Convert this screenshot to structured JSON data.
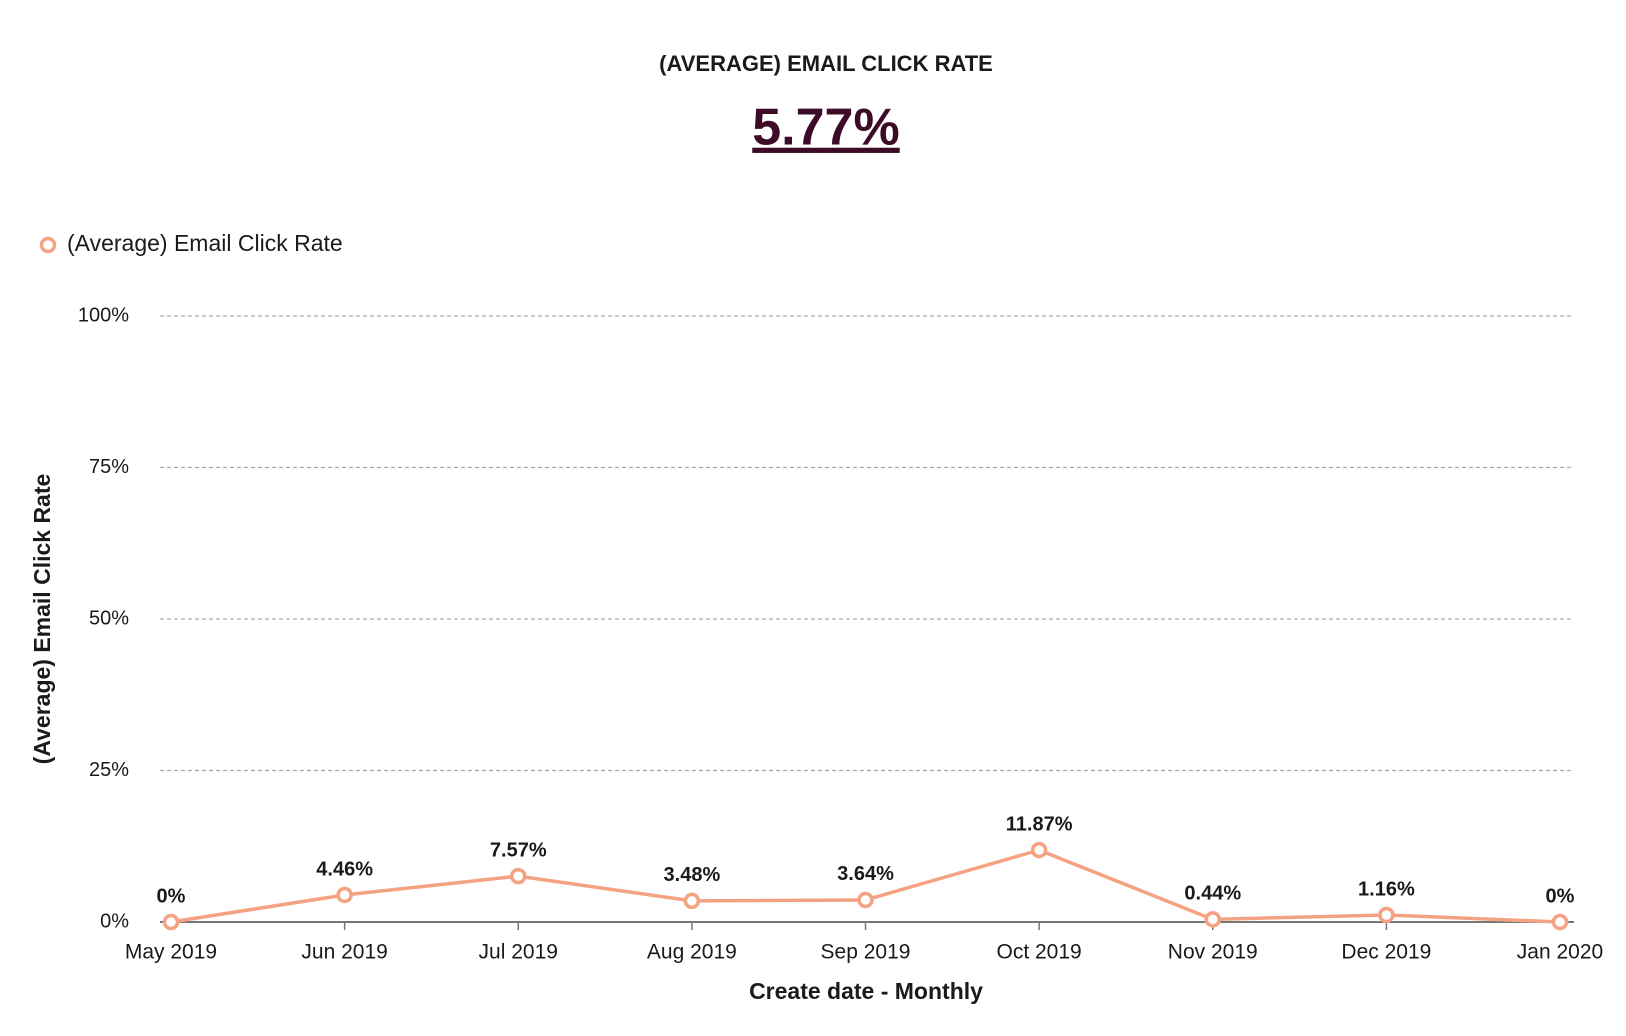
{
  "chart_data": {
    "type": "line",
    "title": "(AVERAGE) EMAIL CLICK RATE",
    "headline": "5.77%",
    "x_label": "Create date - Monthly",
    "y_label": "(Average) Email Click Rate",
    "categories": [
      "May 2019",
      "Jun 2019",
      "Jul 2019",
      "Aug 2019",
      "Sep 2019",
      "Oct 2019",
      "Nov 2019",
      "Dec 2019",
      "Jan 2020"
    ],
    "series": [
      {
        "name": "(Average) Email Click Rate",
        "color": "#f5a282",
        "values": [
          0,
          4.46,
          7.57,
          3.48,
          3.64,
          11.87,
          0.44,
          1.16,
          0
        ],
        "value_labels": [
          "0%",
          "4.46%",
          "7.57%",
          "3.48%",
          "3.64%",
          "11.87%",
          "0.44%",
          "1.16%",
          "0%"
        ]
      }
    ],
    "ylim": [
      0,
      100
    ],
    "yticks": [
      {
        "value": 0,
        "label": "0%"
      },
      {
        "value": 25,
        "label": "25%"
      },
      {
        "value": 50,
        "label": "50%"
      },
      {
        "value": 75,
        "label": "75%"
      },
      {
        "value": 100,
        "label": "100%"
      }
    ],
    "grid": true
  }
}
